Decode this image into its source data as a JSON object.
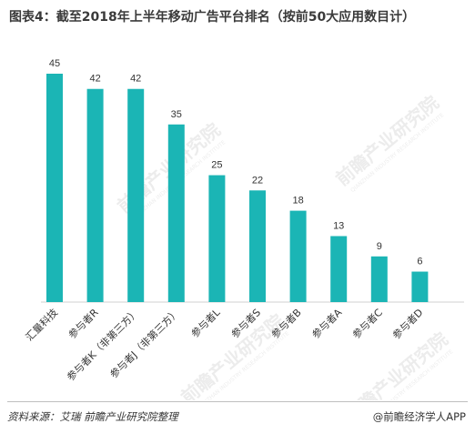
{
  "chart_data": {
    "type": "bar",
    "title": "图表4：截至2018年上半年移动广告平台排名（按前50大应用数目计）",
    "categories": [
      "汇量科技",
      "参与者R",
      "参与者K（非第三方）",
      "参与者J（非第三方）",
      "参与者L",
      "参与者S",
      "参与者B",
      "参与者A",
      "参与者C",
      "参与者D"
    ],
    "values": [
      45,
      42,
      42,
      35,
      25,
      22,
      18,
      13,
      9,
      6
    ],
    "ylim": [
      0,
      45
    ],
    "bar_color": "#1bb5b5",
    "show_data_labels": true,
    "grid": false,
    "xlabel": "",
    "ylabel": ""
  },
  "footer": {
    "source": "资料来源：艾瑞 前瞻产业研究院整理",
    "brand": "@前瞻经济学人APP"
  },
  "watermark": {
    "text": "前瞻产业研究院",
    "subtext": "QIANZHAN INDUSTRY RESEARCH INSTITUTE"
  }
}
